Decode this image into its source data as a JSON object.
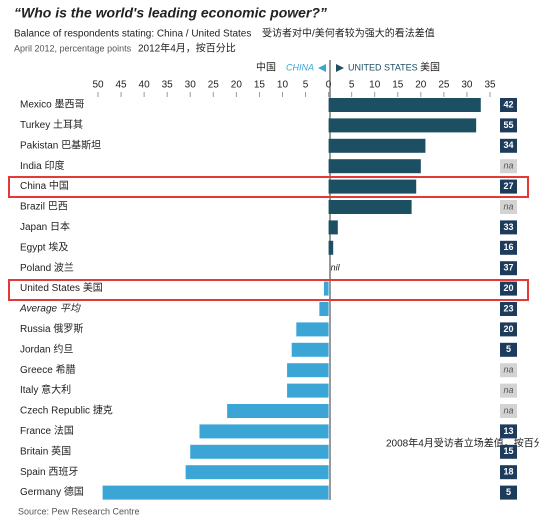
{
  "chart_data": {
    "type": "diverging-bar",
    "title": "“Who is the world's leading economic power?”",
    "subtitle": "Balance of respondents stating: China / United States",
    "subtitle_cn": "受访者对中/美何者较为强大的看法差值",
    "units": "April 2012, percentage points",
    "units_cn": "2012年4月，按百分比",
    "legend": {
      "china_cn": "中国",
      "china": "CHINA",
      "us": "UNITED STATES",
      "us_cn": "美国"
    },
    "categories": [
      "Mexico 墨西哥",
      "Turkey 土耳其",
      "Pakistan 巴基斯坦",
      "India 印度",
      "China 中国",
      "Brazil 巴西",
      "Japan 日本",
      "Egypt 埃及",
      "Poland 波兰",
      "United States 美国",
      "Average 平均",
      "Russia 俄罗斯",
      "Jordan 约旦",
      "Greece 希腊",
      "Italy 意大利",
      "Czech Republic 捷克",
      "France 法国",
      "Britain 英国",
      "Spain 西班牙",
      "Germany 德国"
    ],
    "values": [
      33,
      32,
      21,
      20,
      19,
      18,
      2,
      1,
      0,
      -1,
      -2,
      -7,
      -8,
      -9,
      -9,
      -22,
      -28,
      -30,
      -31,
      -49
    ],
    "zero_label": "nil",
    "colors": {
      "positive": "#1d4f63",
      "negative": "#3ba6d6"
    },
    "values_2008": [
      42,
      55,
      34,
      "na",
      27,
      "na",
      33,
      16,
      37,
      20,
      23,
      20,
      5,
      "na",
      "na",
      "na",
      13,
      15,
      18,
      5
    ],
    "annotation": "2008年4月受访者立场差值，按百分比",
    "source": "Source: Pew Research Centre",
    "xlim": [
      -50,
      35
    ],
    "xticks": [
      {
        "value": -50,
        "label": "50"
      },
      {
        "value": -45,
        "label": "45"
      },
      {
        "value": -40,
        "label": "40"
      },
      {
        "value": -35,
        "label": "35"
      },
      {
        "value": -30,
        "label": "30"
      },
      {
        "value": -25,
        "label": "25"
      },
      {
        "value": -20,
        "label": "20"
      },
      {
        "value": -15,
        "label": "15"
      },
      {
        "value": -10,
        "label": "10"
      },
      {
        "value": -5,
        "label": "5"
      },
      0,
      5,
      10,
      15,
      20,
      25,
      30,
      35
    ]
  }
}
